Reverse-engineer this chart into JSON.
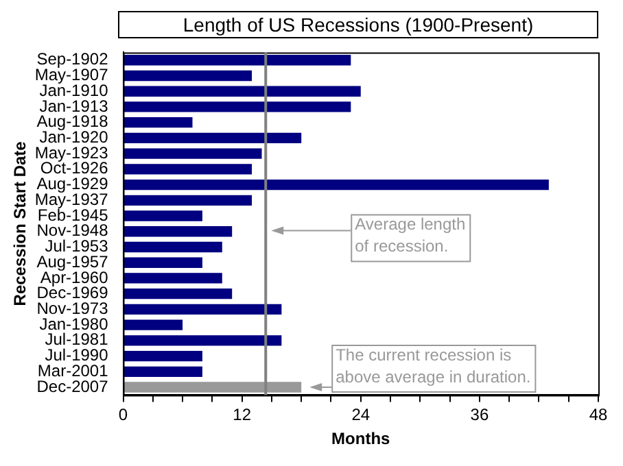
{
  "chart_data": {
    "type": "bar",
    "orientation": "horizontal",
    "title": "Length of US Recessions (1900-Present)",
    "xlabel": "Months",
    "ylabel": "Recession Start Date",
    "categories": [
      "Sep-1902",
      "May-1907",
      "Jan-1910",
      "Jan-1913",
      "Aug-1918",
      "Jan-1920",
      "May-1923",
      "Oct-1926",
      "Aug-1929",
      "May-1937",
      "Feb-1945",
      "Nov-1948",
      "Jul-1953",
      "Aug-1957",
      "Apr-1960",
      "Dec-1969",
      "Nov-1973",
      "Jan-1980",
      "Jul-1981",
      "Jul-1990",
      "Mar-2001",
      "Dec-2007"
    ],
    "values": [
      23,
      13,
      24,
      23,
      7,
      18,
      14,
      13,
      43,
      13,
      8,
      11,
      10,
      8,
      10,
      11,
      16,
      6,
      16,
      8,
      8,
      18
    ],
    "colors": [
      "#000080",
      "#000080",
      "#000080",
      "#000080",
      "#000080",
      "#000080",
      "#000080",
      "#000080",
      "#000080",
      "#000080",
      "#000080",
      "#000080",
      "#000080",
      "#000080",
      "#000080",
      "#000080",
      "#000080",
      "#000080",
      "#000080",
      "#000080",
      "#000080",
      "#999999"
    ],
    "xlim": [
      0,
      48
    ],
    "xticks": [
      0,
      {
        "value": 3,
        "label": null
      },
      {
        "value": 6,
        "label": null
      },
      {
        "value": 9,
        "label": null
      },
      12,
      {
        "value": 15,
        "label": null
      },
      {
        "value": 18,
        "label": null
      },
      {
        "value": 21,
        "label": null
      },
      24,
      {
        "value": 27,
        "label": null
      },
      {
        "value": 30,
        "label": null
      },
      {
        "value": 33,
        "label": null
      },
      36,
      {
        "value": 39,
        "label": null
      },
      {
        "value": 42,
        "label": null
      },
      {
        "value": 45,
        "label": null
      },
      48
    ],
    "ref_lines": [
      {
        "axis": "x",
        "value": 14.4,
        "label": "Average length of recession.",
        "color": "#808080"
      }
    ],
    "annotations": [
      {
        "text": "The current recession is above average in duration.",
        "x": 18,
        "y": "Dec-2007"
      }
    ],
    "grid": false,
    "legend": false
  }
}
